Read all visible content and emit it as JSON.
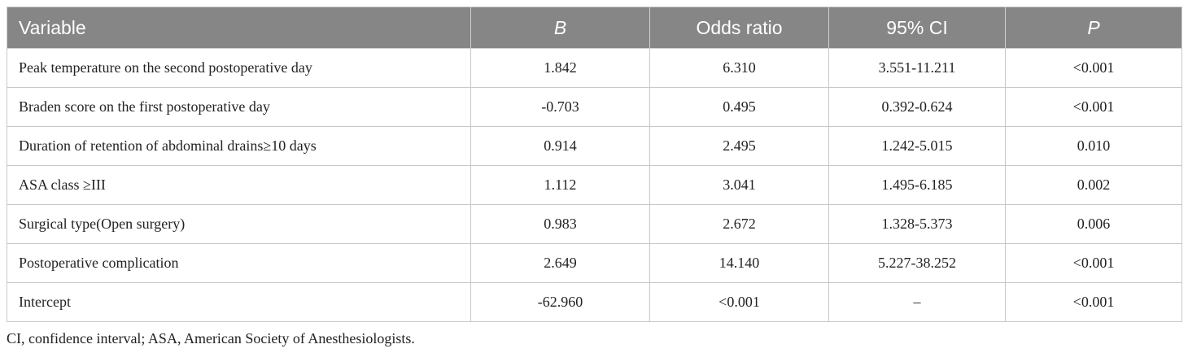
{
  "table": {
    "header": [
      "Variable",
      "B",
      "Odds ratio",
      "95% CI",
      "P"
    ],
    "rows": [
      [
        "Peak temperature on the second postoperative day",
        "1.842",
        "6.310",
        "3.551-11.211",
        "<0.001"
      ],
      [
        "Braden score on the first postoperative day",
        "-0.703",
        "0.495",
        "0.392-0.624",
        "<0.001"
      ],
      [
        "Duration of retention of abdominal drains≥10 days",
        "0.914",
        "2.495",
        "1.242-5.015",
        "0.010"
      ],
      [
        "ASA class ≥III",
        "1.112",
        "3.041",
        "1.495-6.185",
        "0.002"
      ],
      [
        "Surgical type(Open surgery)",
        "0.983",
        "2.672",
        "1.328-5.373",
        "0.006"
      ],
      [
        "Postoperative complication",
        "2.649",
        "14.140",
        "5.227-38.252",
        "<0.001"
      ],
      [
        "Intercept",
        "-62.960",
        "<0.001",
        "–",
        "<0.001"
      ]
    ],
    "footnote": "CI, confidence interval; ASA, American Society of Anesthesiologists."
  }
}
